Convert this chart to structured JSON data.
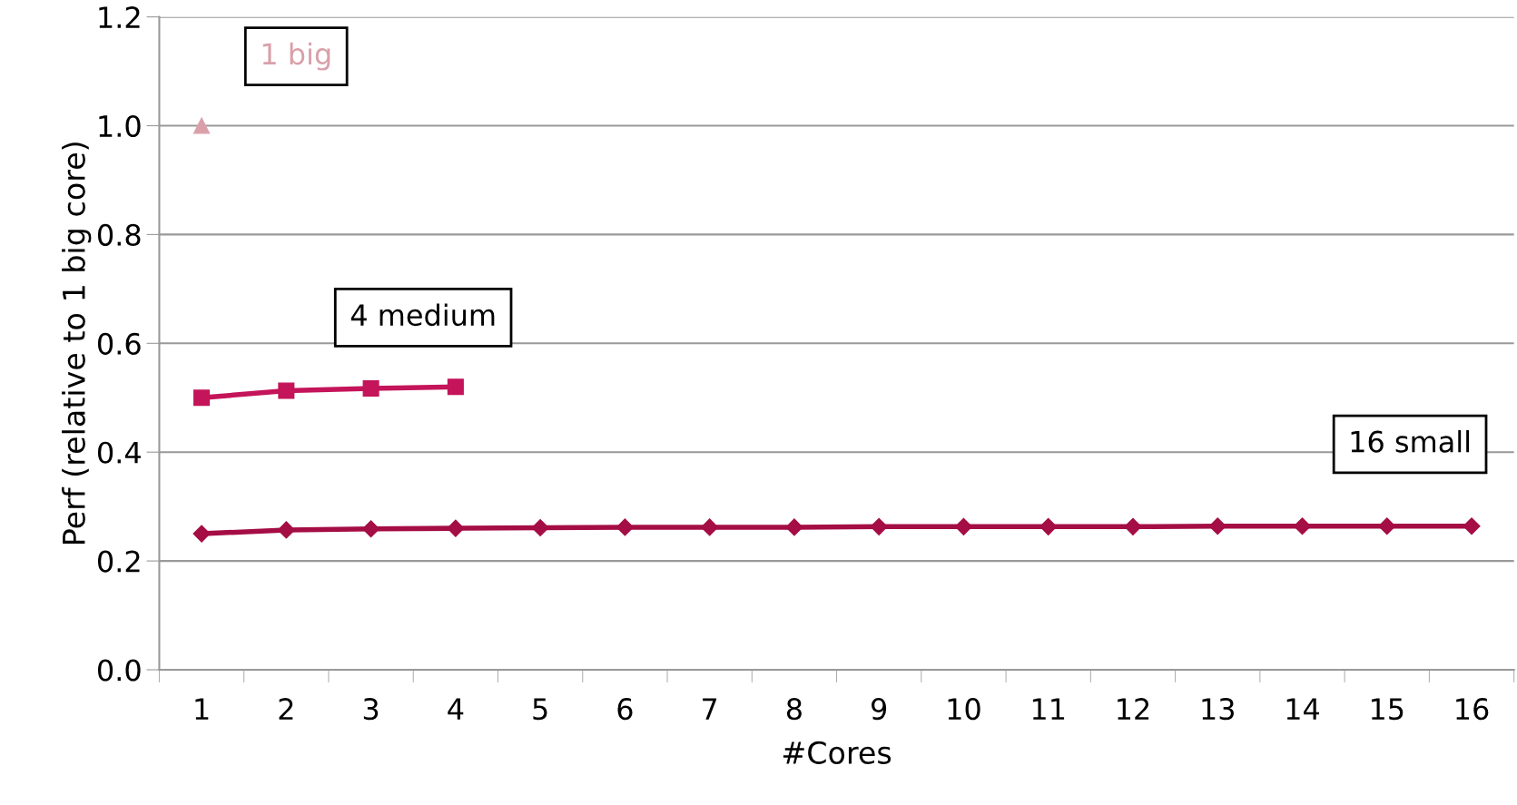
{
  "chart_data": {
    "type": "line",
    "xlabel": "#Cores",
    "ylabel": "Perf (relative to 1 big core)",
    "categories": [
      "1",
      "2",
      "3",
      "4",
      "5",
      "6",
      "7",
      "8",
      "9",
      "10",
      "11",
      "12",
      "13",
      "14",
      "15",
      "16"
    ],
    "series": [
      {
        "name": "1 big",
        "color": "#d9a0aa",
        "marker": "triangle",
        "values": [
          1.0,
          null,
          null,
          null,
          null,
          null,
          null,
          null,
          null,
          null,
          null,
          null,
          null,
          null,
          null,
          null
        ]
      },
      {
        "name": "4 medium",
        "color": "#c4145a",
        "marker": "square",
        "values": [
          0.5,
          0.513,
          0.517,
          0.52,
          null,
          null,
          null,
          null,
          null,
          null,
          null,
          null,
          null,
          null,
          null,
          null
        ]
      },
      {
        "name": "16 small",
        "color": "#a50d45",
        "marker": "diamond",
        "values": [
          0.25,
          0.257,
          0.259,
          0.26,
          0.261,
          0.262,
          0.262,
          0.262,
          0.263,
          0.263,
          0.263,
          0.263,
          0.264,
          0.264,
          0.264,
          0.264
        ]
      }
    ],
    "ylim": [
      0,
      1.2
    ],
    "yticks": [
      {
        "value": 0,
        "label": "0.0"
      },
      {
        "value": 0.2,
        "label": "0.2"
      },
      {
        "value": 0.4,
        "label": "0.4"
      },
      {
        "value": 0.6,
        "label": "0.6"
      },
      {
        "value": 0.8,
        "label": "0.8"
      },
      {
        "value": 1.0,
        "label": "1.0"
      },
      {
        "value": 1.2,
        "label": "1.2"
      }
    ],
    "grid": "y",
    "legend": false
  }
}
